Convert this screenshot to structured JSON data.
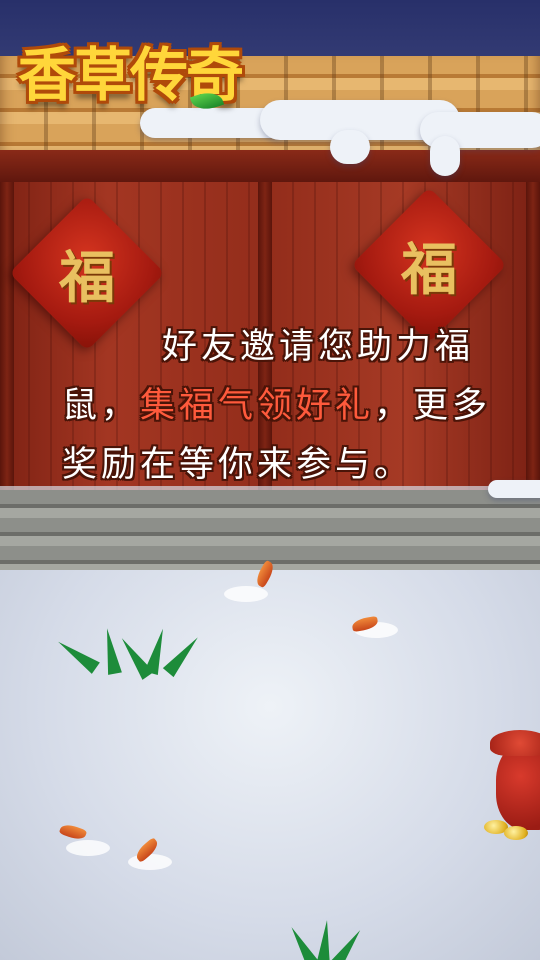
{
  "logo": {
    "text": "香草传奇"
  },
  "decorations": {
    "fu_left": "福",
    "fu_right": "福"
  },
  "dialogue": {
    "part1": "好友邀请您助力福鼠，",
    "highlight": "集福气领好礼",
    "part2": "，更多奖励在等你来参与。"
  },
  "colors": {
    "text": "#ffffff",
    "highlight": "#ff5a3c",
    "logo": "#ffd63a"
  }
}
